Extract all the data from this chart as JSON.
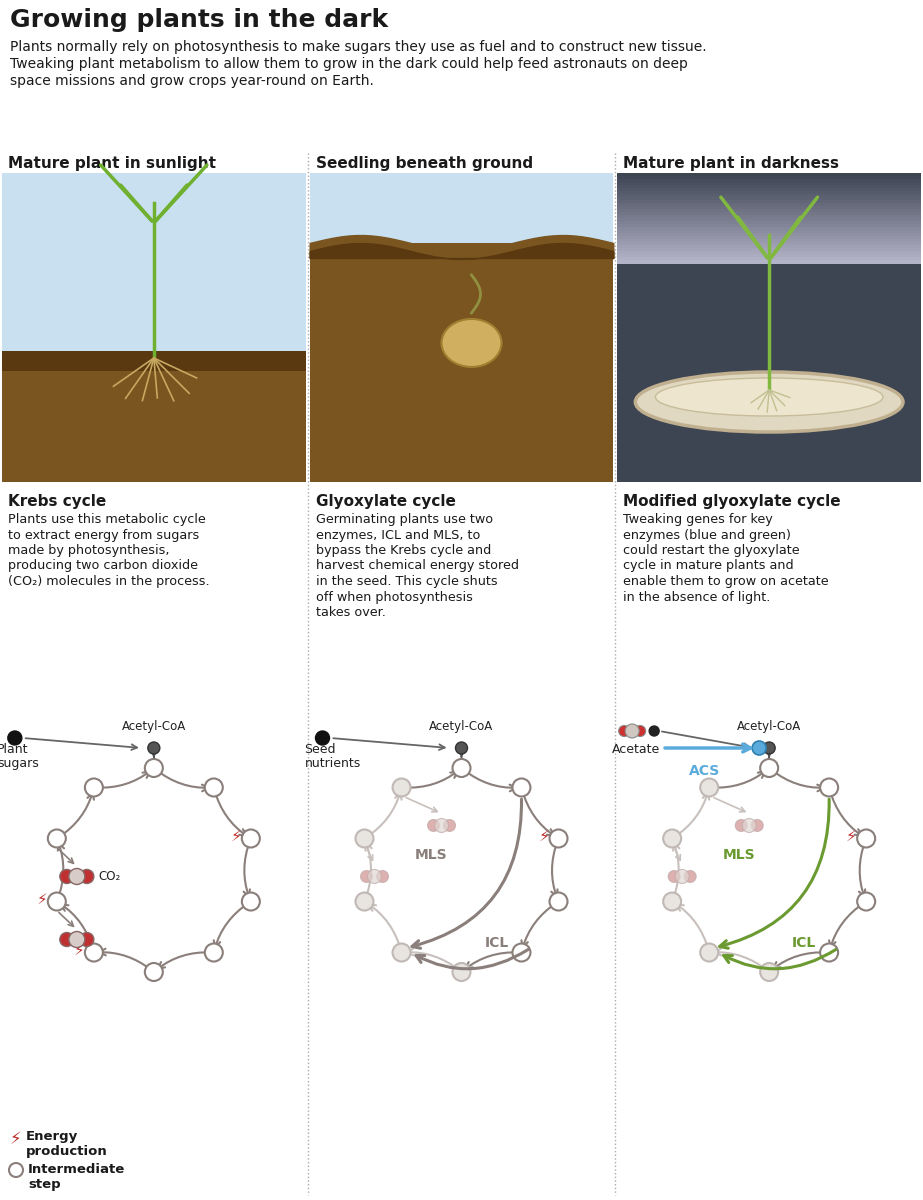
{
  "title": "Growing plants in the dark",
  "subtitle_lines": [
    "Plants normally rely on photosynthesis to make sugars they use as fuel and to construct new tissue.",
    "Tweaking plant metabolism to allow them to grow in the dark could help feed astronauts on deep",
    "space missions and grow crops year-round on Earth."
  ],
  "col_titles": [
    "Mature plant in sunlight",
    "Seedling beneath ground",
    "Mature plant in darkness"
  ],
  "cycle_titles": [
    "Krebs cycle",
    "Glyoxylate cycle",
    "Modified glyoxylate cycle"
  ],
  "cycle_texts": [
    [
      "Plants use this metabolic cycle",
      "to extract energy from sugars",
      "made by photosynthesis,",
      "producing two carbon dioxide",
      "(CO₂) molecules in the process."
    ],
    [
      "Germinating plants use two",
      "enzymes, ICL and MLS, to",
      "bypass the Krebs cycle and",
      "harvest chemical energy stored",
      "in the seed. This cycle shuts",
      "off when photosynthesis",
      "takes over."
    ],
    [
      "Tweaking genes for key",
      "enzymes (blue and green)",
      "could restart the glyoxylate",
      "cycle in mature plants and",
      "enable them to grow on acetate",
      "in the absence of light."
    ]
  ],
  "bg_color": "#ffffff",
  "text_color": "#1a1a1a",
  "arrow_gray": "#8a7f7a",
  "arrow_faded": "#c8c0bc",
  "green_enzyme": "#6a9a30",
  "blue_enzyme": "#5aabdc",
  "blue_dot": "#5aabdc",
  "red_energy": "#c03030",
  "sep_color": "#aaaaaa",
  "sky_blue": "#c8e0f0",
  "soil_brown": "#7a5520",
  "soil_dark": "#5a3810",
  "dark_bg": "#3d4452",
  "cream": "#f0e8d0",
  "cream_edge": "#c8b898",
  "node_fill": "#ffffff",
  "node_edge": "#8a7f7a",
  "faded_node_fill": "#e8e4e0",
  "faded_node_edge": "#c0b8b4"
}
